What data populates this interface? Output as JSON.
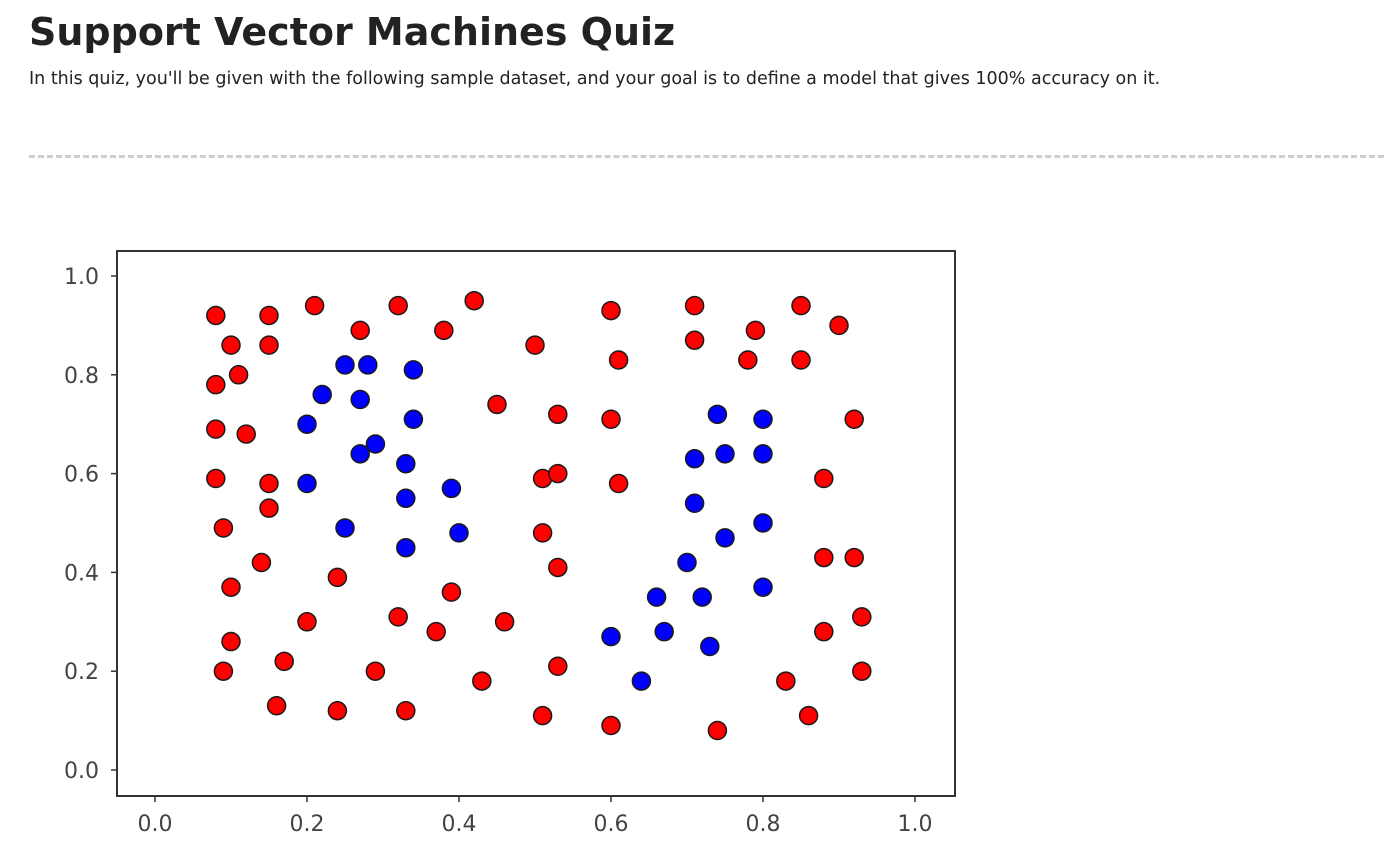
{
  "page": {
    "title": "Support Vector Machines Quiz",
    "intro": "In this quiz, you'll be given with the following sample dataset, and your goal is to define a model that gives 100% accuracy on it."
  },
  "chart_data": {
    "type": "scatter",
    "xlim": [
      -0.05,
      1.05
    ],
    "ylim": [
      -0.05,
      1.05
    ],
    "xticks": [
      "0.0",
      "0.2",
      "0.4",
      "0.6",
      "0.8",
      "1.0"
    ],
    "yticks": [
      "0.0",
      "0.2",
      "0.4",
      "0.6",
      "0.8",
      "1.0"
    ],
    "grid": false,
    "colors": {
      "red_class": "#ff0000",
      "blue_class": "#0000ff",
      "edge": "#1a1a1a"
    },
    "series": [
      {
        "color": "#ff0000",
        "points": [
          [
            0.08,
            0.92
          ],
          [
            0.1,
            0.86
          ],
          [
            0.15,
            0.92
          ],
          [
            0.15,
            0.86
          ],
          [
            0.21,
            0.94
          ],
          [
            0.27,
            0.89
          ],
          [
            0.32,
            0.94
          ],
          [
            0.38,
            0.89
          ],
          [
            0.42,
            0.95
          ],
          [
            0.08,
            0.78
          ],
          [
            0.11,
            0.8
          ],
          [
            0.08,
            0.69
          ],
          [
            0.12,
            0.68
          ],
          [
            0.08,
            0.59
          ],
          [
            0.15,
            0.58
          ],
          [
            0.15,
            0.53
          ],
          [
            0.09,
            0.49
          ],
          [
            0.14,
            0.42
          ],
          [
            0.1,
            0.37
          ],
          [
            0.1,
            0.26
          ],
          [
            0.09,
            0.2
          ],
          [
            0.17,
            0.22
          ],
          [
            0.16,
            0.13
          ],
          [
            0.2,
            0.3
          ],
          [
            0.24,
            0.39
          ],
          [
            0.24,
            0.12
          ],
          [
            0.29,
            0.2
          ],
          [
            0.32,
            0.31
          ],
          [
            0.33,
            0.12
          ],
          [
            0.37,
            0.28
          ],
          [
            0.39,
            0.36
          ],
          [
            0.43,
            0.18
          ],
          [
            0.46,
            0.3
          ],
          [
            0.45,
            0.74
          ],
          [
            0.5,
            0.86
          ],
          [
            0.51,
            0.59
          ],
          [
            0.53,
            0.6
          ],
          [
            0.53,
            0.72
          ],
          [
            0.51,
            0.48
          ],
          [
            0.53,
            0.41
          ],
          [
            0.53,
            0.21
          ],
          [
            0.51,
            0.11
          ],
          [
            0.6,
            0.93
          ],
          [
            0.61,
            0.83
          ],
          [
            0.6,
            0.71
          ],
          [
            0.61,
            0.58
          ],
          [
            0.6,
            0.09
          ],
          [
            0.71,
            0.94
          ],
          [
            0.71,
            0.87
          ],
          [
            0.74,
            0.08
          ],
          [
            0.78,
            0.83
          ],
          [
            0.79,
            0.89
          ],
          [
            0.85,
            0.83
          ],
          [
            0.85,
            0.94
          ],
          [
            0.9,
            0.9
          ],
          [
            0.92,
            0.71
          ],
          [
            0.88,
            0.59
          ],
          [
            0.88,
            0.43
          ],
          [
            0.92,
            0.43
          ],
          [
            0.88,
            0.28
          ],
          [
            0.93,
            0.31
          ],
          [
            0.93,
            0.2
          ],
          [
            0.83,
            0.18
          ],
          [
            0.86,
            0.11
          ]
        ]
      },
      {
        "color": "#0000ff",
        "points": [
          [
            0.25,
            0.82
          ],
          [
            0.28,
            0.82
          ],
          [
            0.34,
            0.81
          ],
          [
            0.22,
            0.76
          ],
          [
            0.27,
            0.75
          ],
          [
            0.2,
            0.7
          ],
          [
            0.34,
            0.71
          ],
          [
            0.29,
            0.66
          ],
          [
            0.27,
            0.64
          ],
          [
            0.33,
            0.62
          ],
          [
            0.2,
            0.58
          ],
          [
            0.33,
            0.55
          ],
          [
            0.39,
            0.57
          ],
          [
            0.25,
            0.49
          ],
          [
            0.33,
            0.45
          ],
          [
            0.4,
            0.48
          ],
          [
            0.74,
            0.72
          ],
          [
            0.8,
            0.71
          ],
          [
            0.71,
            0.63
          ],
          [
            0.75,
            0.64
          ],
          [
            0.8,
            0.64
          ],
          [
            0.71,
            0.54
          ],
          [
            0.8,
            0.5
          ],
          [
            0.75,
            0.47
          ],
          [
            0.7,
            0.42
          ],
          [
            0.8,
            0.37
          ],
          [
            0.66,
            0.35
          ],
          [
            0.72,
            0.35
          ],
          [
            0.67,
            0.28
          ],
          [
            0.6,
            0.27
          ],
          [
            0.73,
            0.25
          ],
          [
            0.64,
            0.18
          ]
        ]
      }
    ]
  }
}
